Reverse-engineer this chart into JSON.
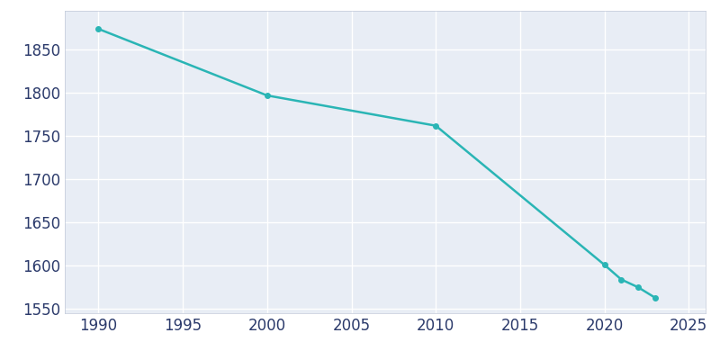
{
  "years": [
    1990,
    2000,
    2010,
    2020,
    2021,
    2022,
    2023
  ],
  "population": [
    1874,
    1797,
    1762,
    1601,
    1584,
    1575,
    1563
  ],
  "line_color": "#2ab5b5",
  "marker": "o",
  "marker_size": 4,
  "line_width": 1.8,
  "background_color": "#e8edf5",
  "outer_background": "#ffffff",
  "grid_color": "#ffffff",
  "tick_color": "#2b3a6b",
  "xlim": [
    1988,
    2026
  ],
  "ylim": [
    1545,
    1895
  ],
  "xticks": [
    1990,
    1995,
    2000,
    2005,
    2010,
    2015,
    2020,
    2025
  ],
  "yticks": [
    1550,
    1600,
    1650,
    1700,
    1750,
    1800,
    1850
  ],
  "tick_label_fontsize": 12,
  "spine_color": "#c0c8d8"
}
